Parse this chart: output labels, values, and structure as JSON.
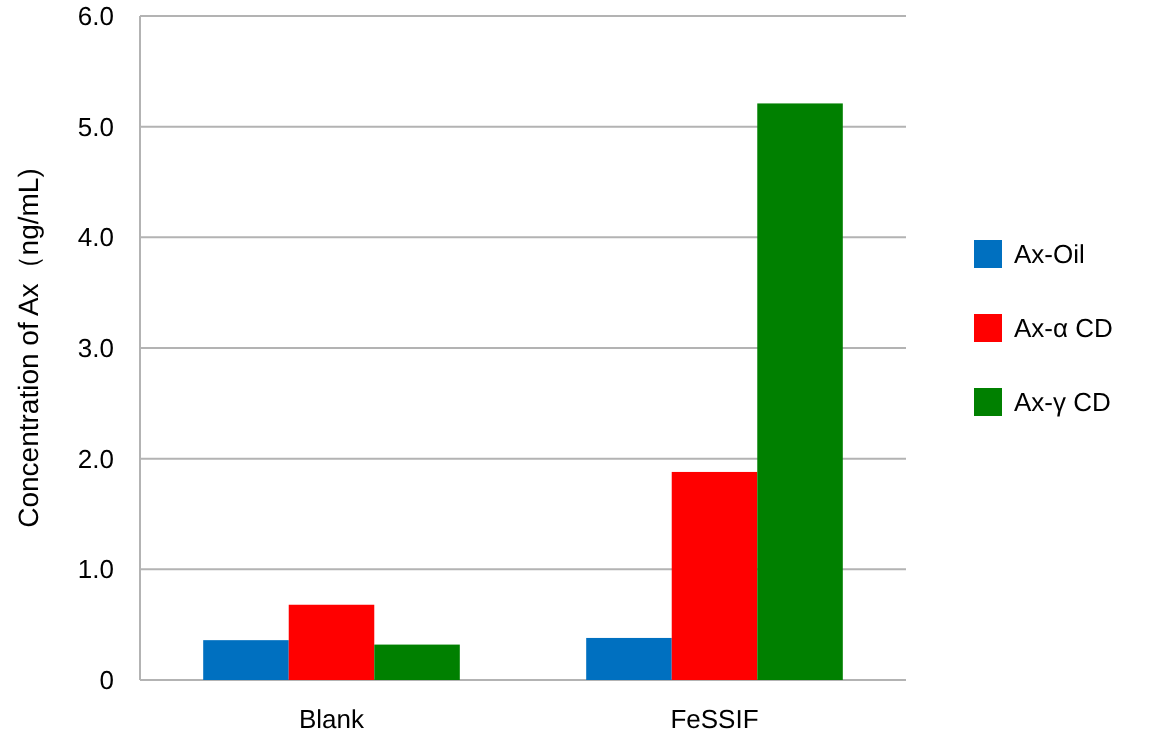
{
  "chart_data": {
    "type": "bar",
    "ylabel": "Concentration of Ax（ng/mL)",
    "categories": [
      "Blank",
      "FeSSIF"
    ],
    "series": [
      {
        "name": "Ax-Oil",
        "color": "#0070c0",
        "values": [
          0.36,
          0.38
        ]
      },
      {
        "name": "Ax-α CD",
        "color": "#ff0000",
        "values": [
          0.68,
          1.88
        ]
      },
      {
        "name": "Ax-γ CD",
        "color": "#008000",
        "values": [
          0.32,
          5.21
        ]
      }
    ],
    "ylim": [
      0,
      6
    ],
    "yticks": [
      0,
      {
        "value": 1,
        "label": "1.0"
      },
      {
        "value": 2,
        "label": "2.0"
      },
      {
        "value": 3,
        "label": "3.0"
      },
      {
        "value": 4,
        "label": "4.0"
      },
      {
        "value": 5,
        "label": "5.0"
      },
      {
        "value": 6,
        "label": "6.0"
      }
    ],
    "grid": "y",
    "legend": "right"
  }
}
